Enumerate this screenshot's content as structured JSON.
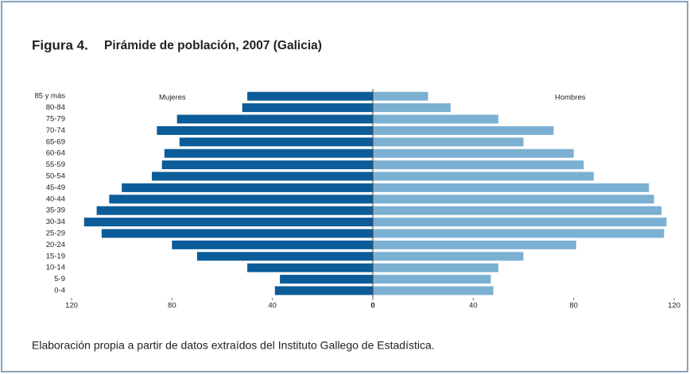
{
  "chart_data": {
    "type": "pyramid",
    "figure_label": "Figura 4.",
    "title": "Pirámide de población, 2007 (Galicia)",
    "source": "Elaboración propia a partir de datos extraídos del Instituto Gallego de Estadística.",
    "categories": [
      "85 y más",
      "80-84",
      "75-79",
      "70-74",
      "65-69",
      "60-64",
      "55-59",
      "50-54",
      "45-49",
      "40-44",
      "35-39",
      "30-34",
      "25-29",
      "20-24",
      "15-19",
      "10-14",
      "5-9",
      "0-4"
    ],
    "series": [
      {
        "name": "Mujeres",
        "side": "left",
        "color": "#0b5c98",
        "values": [
          50,
          52,
          78,
          86,
          77,
          83,
          84,
          88,
          100,
          105,
          110,
          115,
          108,
          80,
          70,
          50,
          37,
          39
        ]
      },
      {
        "name": "Hombres",
        "side": "right",
        "color": "#7bb0d3",
        "values": [
          22,
          31,
          50,
          72,
          60,
          80,
          84,
          88,
          110,
          112,
          115,
          117,
          116,
          81,
          60,
          50,
          47,
          48
        ]
      }
    ],
    "xlim": [
      0,
      120
    ],
    "xticks": [
      0,
      40,
      80,
      120
    ]
  }
}
